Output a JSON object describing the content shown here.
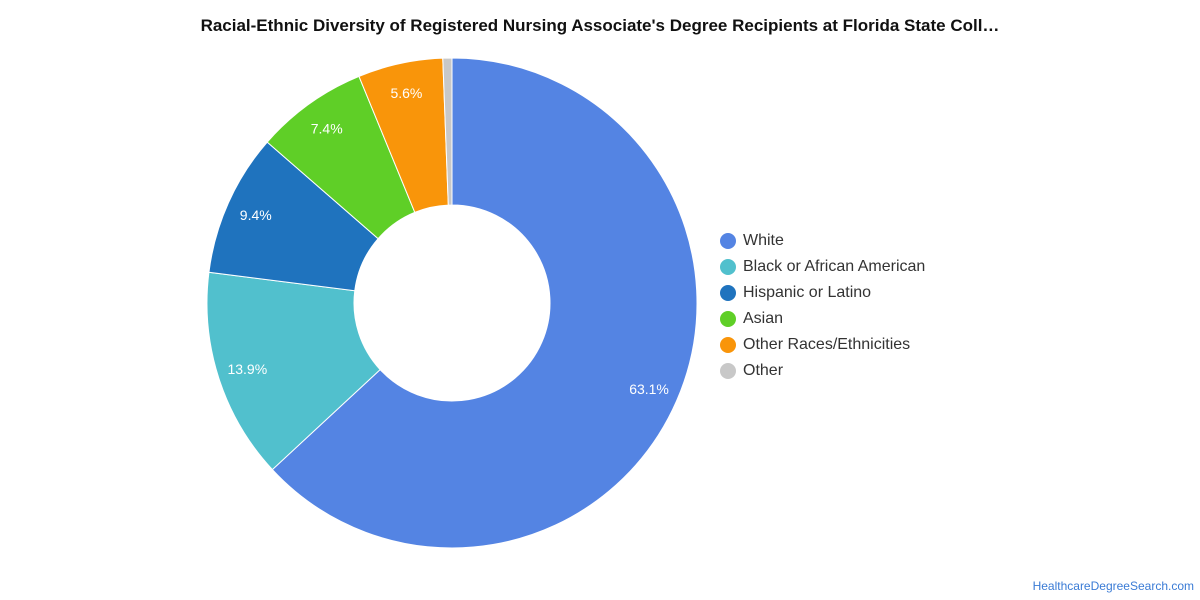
{
  "chart_data": {
    "type": "pie",
    "variant": "donut",
    "title": "Racial-Ethnic Diversity of Registered Nursing Associate's Degree Recipients at Florida State Coll…",
    "categories": [
      "White",
      "Black or African American",
      "Hispanic or Latino",
      "Asian",
      "Other Races/Ethnicities",
      "Other"
    ],
    "values": [
      63.1,
      13.9,
      9.4,
      7.4,
      5.6,
      0.6
    ],
    "data_labels": [
      "63.1%",
      "13.9%",
      "9.4%",
      "7.4%",
      "5.6%",
      ""
    ],
    "colors": [
      "#5484e3",
      "#51c0cd",
      "#1f73be",
      "#5fcf27",
      "#f9950a",
      "#c8c8c8"
    ],
    "legend_placement": "right",
    "start_angle": "top",
    "direction": "clockwise"
  },
  "footer": {
    "source": "HealthcareDegreeSearch.com"
  }
}
